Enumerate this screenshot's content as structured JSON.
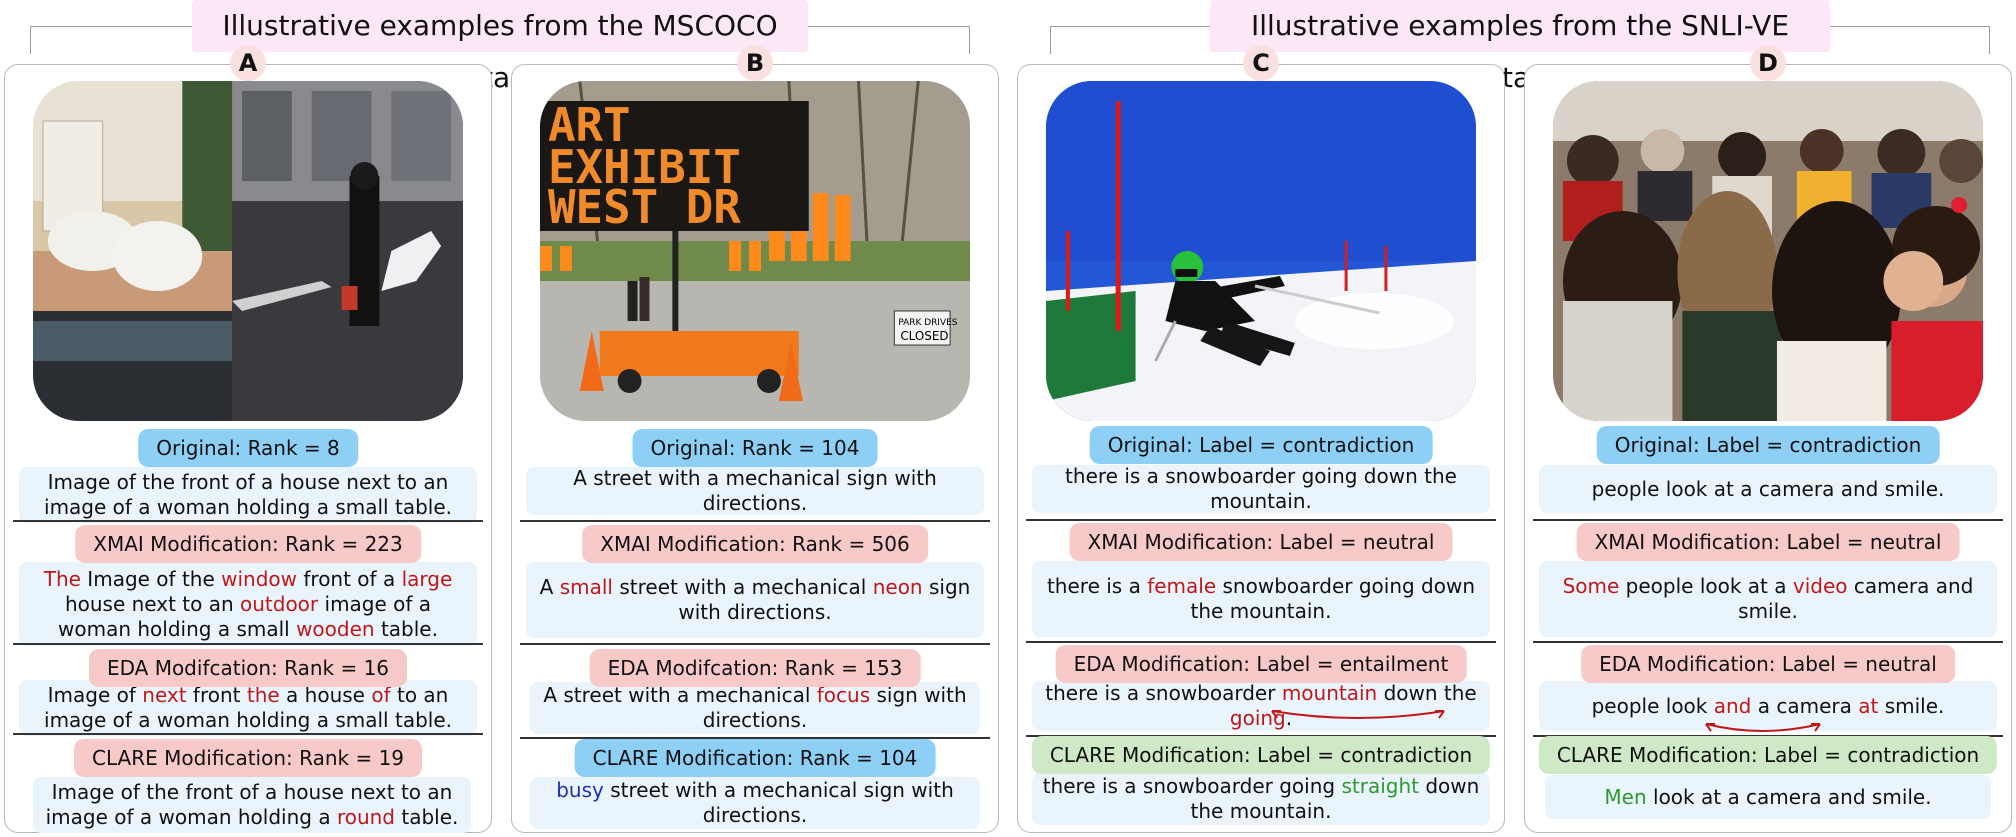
{
  "groups": {
    "mscoco_title": "Illustrative examples from the MSCOCO dataset",
    "snli_title": "Illustrative examples from the SNLI-VE dataset"
  },
  "panels": {
    "a": {
      "letter": "A",
      "image": "photo of a white house entrance with chairs next to a photo of a woman on a street holding a small table",
      "original_label": "Original: Rank = 8",
      "original_text": "Image of the front of a house next to an image of a woman holding a small table.",
      "xmai_label": "XMAI Modification: Rank = 223",
      "xmai_text": [
        "The",
        " Image of the ",
        "window",
        " front of a ",
        "large",
        " house next to an ",
        "outdoor",
        " image of a woman holding a small ",
        "wooden",
        " table."
      ],
      "eda_label": "EDA Modifcation: Rank = 16",
      "eda_text": [
        "Image of ",
        "next",
        " front ",
        "the",
        " a house ",
        "of",
        " to an image of a woman holding a small table."
      ],
      "clare_label": "CLARE Modification: Rank = 19",
      "clare_text": [
        "Image of the front of a house next to an image of a woman holding a ",
        "round",
        " table."
      ]
    },
    "b": {
      "letter": "B",
      "image": "street with an electronic sign reading ART EXHIBIT WEST DR, orange gates, traffic cones and a PARK DRIVES CLOSED sign",
      "sign_line1": "ART",
      "sign_line2": "EXHIBIT",
      "sign_line3": "WEST DR",
      "park_sign1": "PARK DRIVES",
      "park_sign2": "CLOSED",
      "original_label": "Original: Rank = 104",
      "original_text": "A street with a mechanical sign with directions.",
      "xmai_label": "XMAI Modification: Rank = 506",
      "xmai_text": [
        "A ",
        "small",
        " street with a mechanical ",
        "neon",
        " sign with directions."
      ],
      "eda_label": "EDA Modifcation: Rank = 153",
      "eda_text": [
        "A street with a mechanical ",
        "focus",
        " sign with directions."
      ],
      "clare_label": "CLARE Modification: Rank = 104",
      "clare_text": [
        "busy",
        " street with a mechanical sign with directions."
      ]
    },
    "c": {
      "letter": "C",
      "image": "skier in black suit and green helmet racing down a snowy slope under a blue sky",
      "original_label": "Original: Label = contradiction",
      "original_text": "there is a snowboarder going down the mountain.",
      "xmai_label": "XMAI Modification: Label = neutral",
      "xmai_text": [
        "there is a ",
        "female",
        " snowboarder going down the mountain."
      ],
      "eda_label": "EDA Modification: Label = entailment",
      "eda_text": [
        "there is a snowboarder ",
        "mountain",
        " down the ",
        "going",
        "."
      ],
      "clare_label": "CLARE Modification: Label = contradiction",
      "clare_text": [
        "there is a snowboarder going ",
        "straight",
        " down the mountain."
      ]
    },
    "d": {
      "letter": "D",
      "image": "crowd of people seated facing away, a young girl in red in the foreground",
      "original_label": "Original: Label = contradiction",
      "original_text": "people look at a camera and smile.",
      "xmai_label": "XMAI Modification: Label = neutral",
      "xmai_text": [
        "Some",
        " people look at a ",
        "video",
        " camera and smile."
      ],
      "eda_label": "EDA Modification: Label = neutral",
      "eda_text": [
        "people look ",
        "and",
        " a camera ",
        "at",
        " smile."
      ],
      "clare_label": "CLARE Modification: Label = contradiction",
      "clare_text": [
        "Men",
        " look at a camera and smile."
      ]
    }
  },
  "colors": {
    "pill_blue": "#8ecff5",
    "pill_pink": "#f7c9c9",
    "pill_green": "#cfe8c6",
    "textbox_bg": "#e9f4fd",
    "changed_word_red": "#c01818",
    "changed_word_green": "#2e9a2e",
    "changed_word_blue": "#1f2fb0",
    "title_bg": "#fce7f6",
    "letter_bg": "#fbe0e0"
  }
}
